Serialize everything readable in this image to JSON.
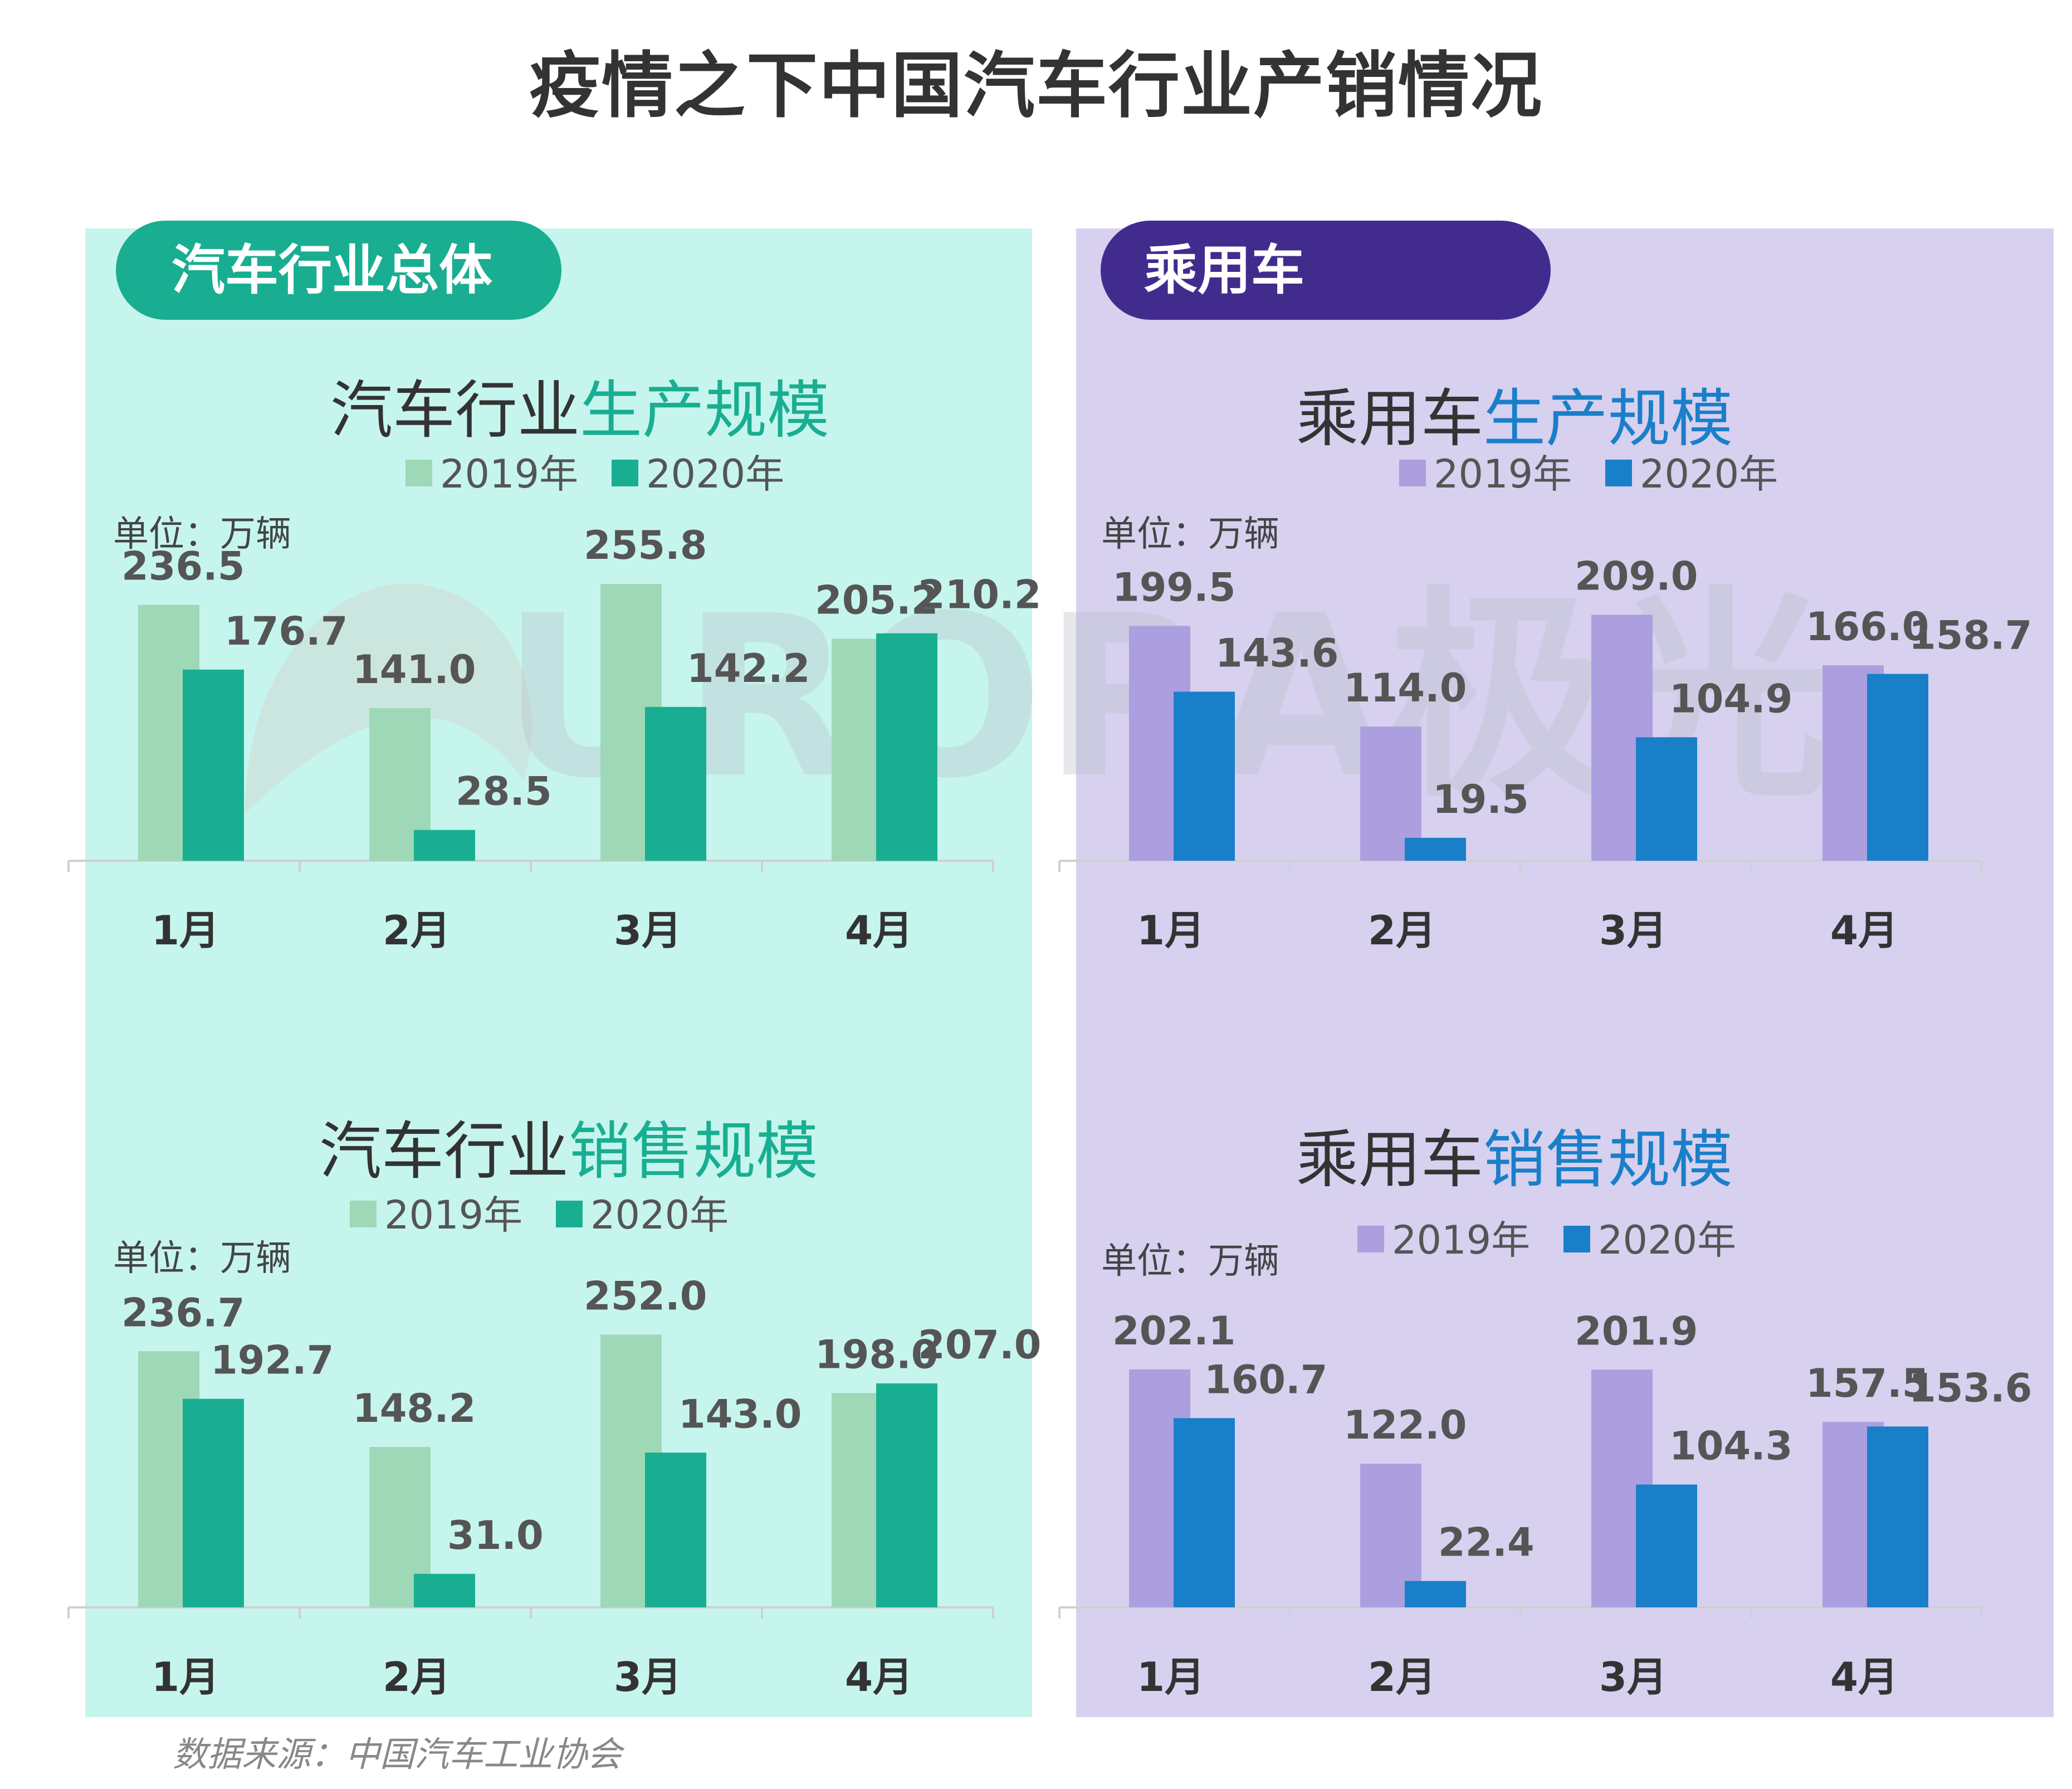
{
  "title": "疫情之下中国汽车行业产销情况",
  "source": "数据来源：中国汽车工业协会",
  "watermark": "URORA极光",
  "sections": {
    "left_label": "汽车行业总体",
    "right_label": "乘用车"
  },
  "colors": {
    "left_bg": "#c6f5ee",
    "right_bg": "#d7d0ef",
    "left_pill": "#19ae91",
    "right_pill": "#412c8e",
    "green_2019": "#9ed8b6",
    "green_2020": "#19ae91",
    "purple_2019": "#ac9fe0",
    "blue_2020": "#1a7fc9",
    "title_green": "#19ae91",
    "title_blue": "#1a7fc9",
    "dark_text": "#333333"
  },
  "chart_data": [
    {
      "type": "bar",
      "title_prefix": "汽车行业",
      "title_highlight": "生产规模",
      "unit": "单位：万辆",
      "categories": [
        "1月",
        "2月",
        "3月",
        "4月"
      ],
      "series": [
        {
          "name": "2019年",
          "values": [
            236.5,
            141.0,
            255.8,
            205.2
          ]
        },
        {
          "name": "2020年",
          "values": [
            176.7,
            28.5,
            142.2,
            210.2
          ]
        }
      ],
      "value_labels": [
        [
          "236.5",
          "141.0",
          "255.8",
          "205.2"
        ],
        [
          "176.7",
          "28.5",
          "142.2",
          "210.2"
        ]
      ],
      "ylim": [
        0,
        260
      ]
    },
    {
      "type": "bar",
      "title_prefix": "汽车行业",
      "title_highlight": "销售规模",
      "unit": "单位：万辆",
      "categories": [
        "1月",
        "2月",
        "3月",
        "4月"
      ],
      "series": [
        {
          "name": "2019年",
          "values": [
            236.7,
            148.2,
            252.0,
            198.0
          ]
        },
        {
          "name": "2020年",
          "values": [
            192.7,
            31.0,
            143.0,
            207.0
          ]
        }
      ],
      "value_labels": [
        [
          "236.7",
          "148.2",
          "252.0",
          "198.0"
        ],
        [
          "192.7",
          "31.0",
          "143.0",
          "207.0"
        ]
      ],
      "ylim": [
        0,
        260
      ]
    },
    {
      "type": "bar",
      "title_prefix": "乘用车",
      "title_highlight": "生产规模",
      "unit": "单位：万辆",
      "categories": [
        "1月",
        "2月",
        "3月",
        "4月"
      ],
      "series": [
        {
          "name": "2019年",
          "values": [
            199.5,
            114.0,
            209.0,
            166.0
          ]
        },
        {
          "name": "2020年",
          "values": [
            143.6,
            19.5,
            104.9,
            158.7
          ]
        }
      ],
      "value_labels": [
        [
          "199.5",
          "114.0",
          "209.0",
          "166.0"
        ],
        [
          "143.6",
          "19.5",
          "104.9",
          "158.7"
        ]
      ],
      "ylim": [
        0,
        220
      ]
    },
    {
      "type": "bar",
      "title_prefix": "乘用车",
      "title_highlight": "销售规模",
      "unit": "单位：万辆",
      "categories": [
        "1月",
        "2月",
        "3月",
        "4月"
      ],
      "series": [
        {
          "name": "2019年",
          "values": [
            202.1,
            122.0,
            201.9,
            157.5
          ]
        },
        {
          "name": "2020年",
          "values": [
            160.7,
            22.4,
            104.3,
            153.6
          ]
        }
      ],
      "value_labels": [
        [
          "202.1",
          "122.0",
          "201.9",
          "157.5"
        ],
        [
          "160.7",
          "22.4",
          "104.3",
          "153.6"
        ]
      ],
      "ylim": [
        0,
        220
      ]
    }
  ]
}
